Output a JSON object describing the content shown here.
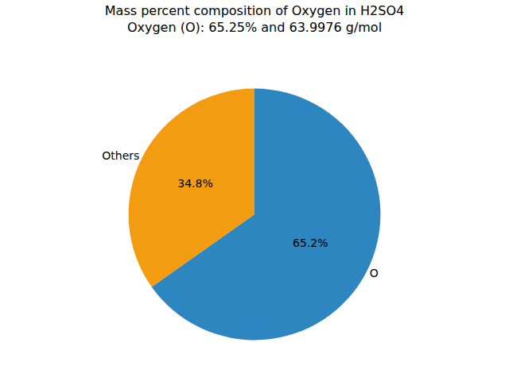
{
  "chart_data": {
    "type": "pie",
    "title": "Mass percent composition of Oxygen in H2SO4\nOxygen (O): 65.25% and 63.9976 g/mol",
    "categories": [
      "O",
      "Others"
    ],
    "values": [
      65.2,
      34.8
    ],
    "value_labels": [
      "65.2%",
      "34.8%"
    ],
    "colors": [
      "#2E86C1",
      "#F39C12"
    ],
    "data_labels": true
  }
}
